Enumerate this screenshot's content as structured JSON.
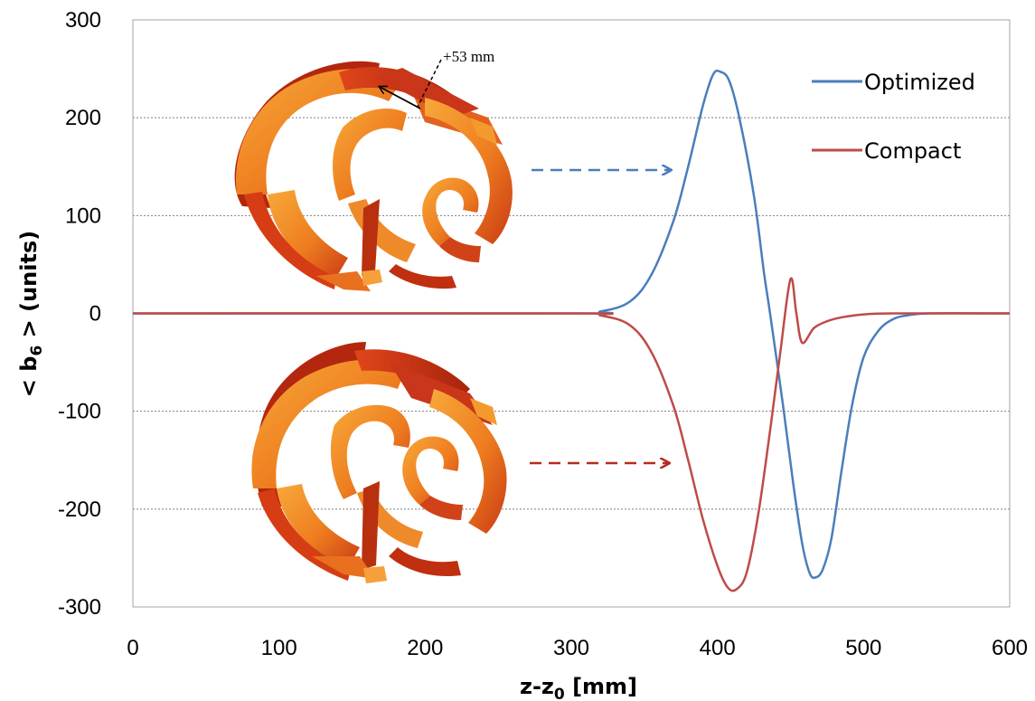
{
  "chart_data": {
    "type": "line",
    "title": "",
    "xlabel": "z-z",
    "xlabel_sub": "0",
    "xlabel_unit": " [mm]",
    "ylabel_prefix": "< b",
    "ylabel_sub": "6",
    "ylabel_suffix": " > (units)",
    "xlim": [
      0,
      600
    ],
    "ylim": [
      -300,
      300
    ],
    "x_ticks": [
      0,
      100,
      200,
      300,
      400,
      500,
      600
    ],
    "y_ticks": [
      300,
      200,
      100,
      0,
      -100,
      -200,
      -300
    ],
    "grid": "horizontal dashed",
    "legend_position": "top-right",
    "series": [
      {
        "name": "Optimized",
        "color": "#4a7ebb",
        "points": [
          [
            0,
            0
          ],
          [
            300,
            0
          ],
          [
            320,
            2
          ],
          [
            340,
            12
          ],
          [
            355,
            40
          ],
          [
            370,
            95
          ],
          [
            380,
            150
          ],
          [
            390,
            212
          ],
          [
            397,
            244
          ],
          [
            402,
            247
          ],
          [
            408,
            238
          ],
          [
            415,
            200
          ],
          [
            425,
            120
          ],
          [
            432,
            40
          ],
          [
            436,
            0
          ],
          [
            445,
            -95
          ],
          [
            452,
            -175
          ],
          [
            458,
            -235
          ],
          [
            463,
            -265
          ],
          [
            467,
            -270
          ],
          [
            472,
            -262
          ],
          [
            478,
            -230
          ],
          [
            485,
            -160
          ],
          [
            492,
            -95
          ],
          [
            500,
            -45
          ],
          [
            510,
            -18
          ],
          [
            520,
            -6
          ],
          [
            530,
            -2
          ],
          [
            545,
            0
          ],
          [
            600,
            0
          ]
        ]
      },
      {
        "name": "Compact",
        "color": "#be4b48",
        "points": [
          [
            0,
            0
          ],
          [
            300,
            0
          ],
          [
            320,
            -2
          ],
          [
            340,
            -12
          ],
          [
            355,
            -40
          ],
          [
            370,
            -95
          ],
          [
            380,
            -150
          ],
          [
            390,
            -210
          ],
          [
            400,
            -258
          ],
          [
            407,
            -280
          ],
          [
            413,
            -282
          ],
          [
            420,
            -265
          ],
          [
            428,
            -205
          ],
          [
            436,
            -120
          ],
          [
            443,
            -40
          ],
          [
            450,
            35
          ],
          [
            454,
            0
          ],
          [
            458,
            -30
          ],
          [
            466,
            -15
          ],
          [
            475,
            -8
          ],
          [
            485,
            -4
          ],
          [
            500,
            -1
          ],
          [
            520,
            0
          ],
          [
            600,
            0
          ]
        ]
      }
    ],
    "annotation": "+53 mm"
  }
}
